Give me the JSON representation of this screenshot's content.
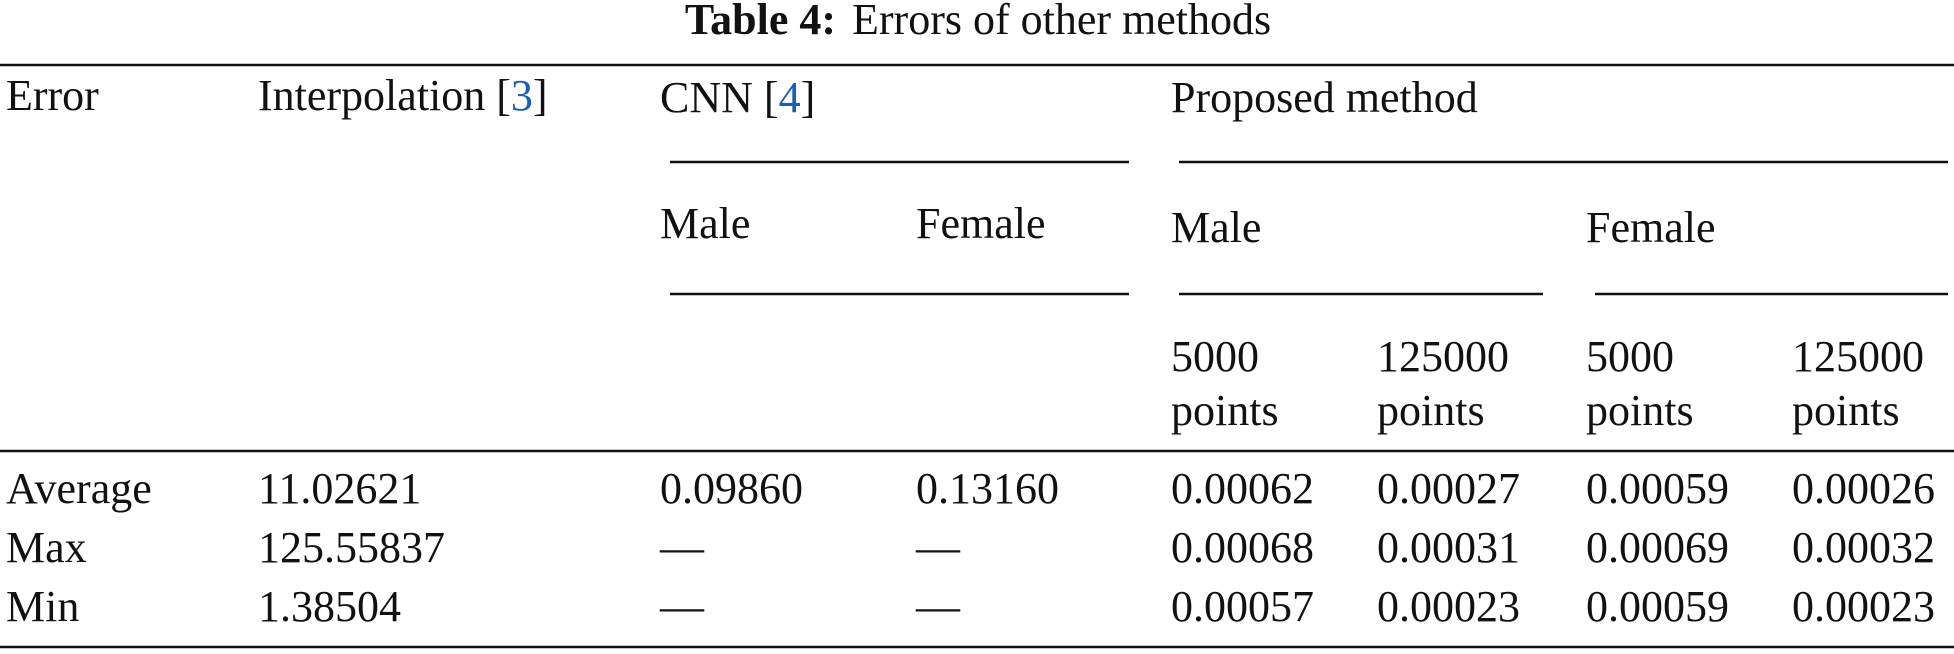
{
  "title": {
    "label": "Table 4:",
    "text": "Errors of other methods"
  },
  "header": {
    "error": "Error",
    "interpolation": {
      "before": "Interpolation [",
      "cite": "3",
      "after": "]"
    },
    "cnn": {
      "before": "CNN [",
      "cite": "4",
      "after": "]"
    },
    "proposed": "Proposed method",
    "cnn_groups": [
      "Male",
      "Female"
    ],
    "proposed_groups": [
      "Male",
      "Female"
    ],
    "points": [
      [
        "5000",
        "points"
      ],
      [
        "125000",
        "points"
      ],
      [
        "5000",
        "points"
      ],
      [
        "125000",
        "points"
      ]
    ]
  },
  "rows": [
    [
      "Average",
      "11.02621",
      "0.09860",
      "0.13160",
      "0.00062",
      "0.00027",
      "0.00059",
      "0.00026"
    ],
    [
      "Max",
      "125.55837",
      "—",
      "—",
      "0.00068",
      "0.00031",
      "0.00069",
      "0.00032"
    ],
    [
      "Min",
      "1.38504",
      "—",
      "—",
      "0.00057",
      "0.00023",
      "0.00059",
      "0.00023"
    ]
  ]
}
